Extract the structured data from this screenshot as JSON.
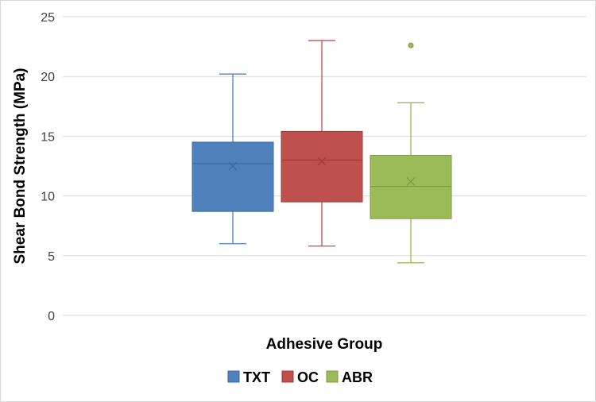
{
  "chart_data": {
    "type": "box",
    "title": "",
    "xlabel": "Adhesive Group",
    "ylabel": "Shear Bond Strength (MPa)",
    "ylim": [
      0,
      25
    ],
    "yticks": [
      0,
      5,
      10,
      15,
      20,
      25
    ],
    "grid": true,
    "legend_position": "bottom",
    "series": [
      {
        "name": "TXT",
        "color": "#4f81bd",
        "edge": "#3a6aa0",
        "min": 6.0,
        "q1": 8.7,
        "median": 12.7,
        "q3": 14.5,
        "max": 20.2,
        "mean": 12.5,
        "outliers": []
      },
      {
        "name": "OC",
        "color": "#c0504d",
        "edge": "#a03b38",
        "min": 5.8,
        "q1": 9.5,
        "median": 13.0,
        "q3": 15.4,
        "max": 23.0,
        "mean": 12.9,
        "outliers": []
      },
      {
        "name": "ABR",
        "color": "#9bbb59",
        "edge": "#7c9a3f",
        "min": 4.4,
        "q1": 8.1,
        "median": 10.8,
        "q3": 13.4,
        "max": 17.8,
        "mean": 11.2,
        "outliers": [
          22.6
        ]
      }
    ]
  }
}
